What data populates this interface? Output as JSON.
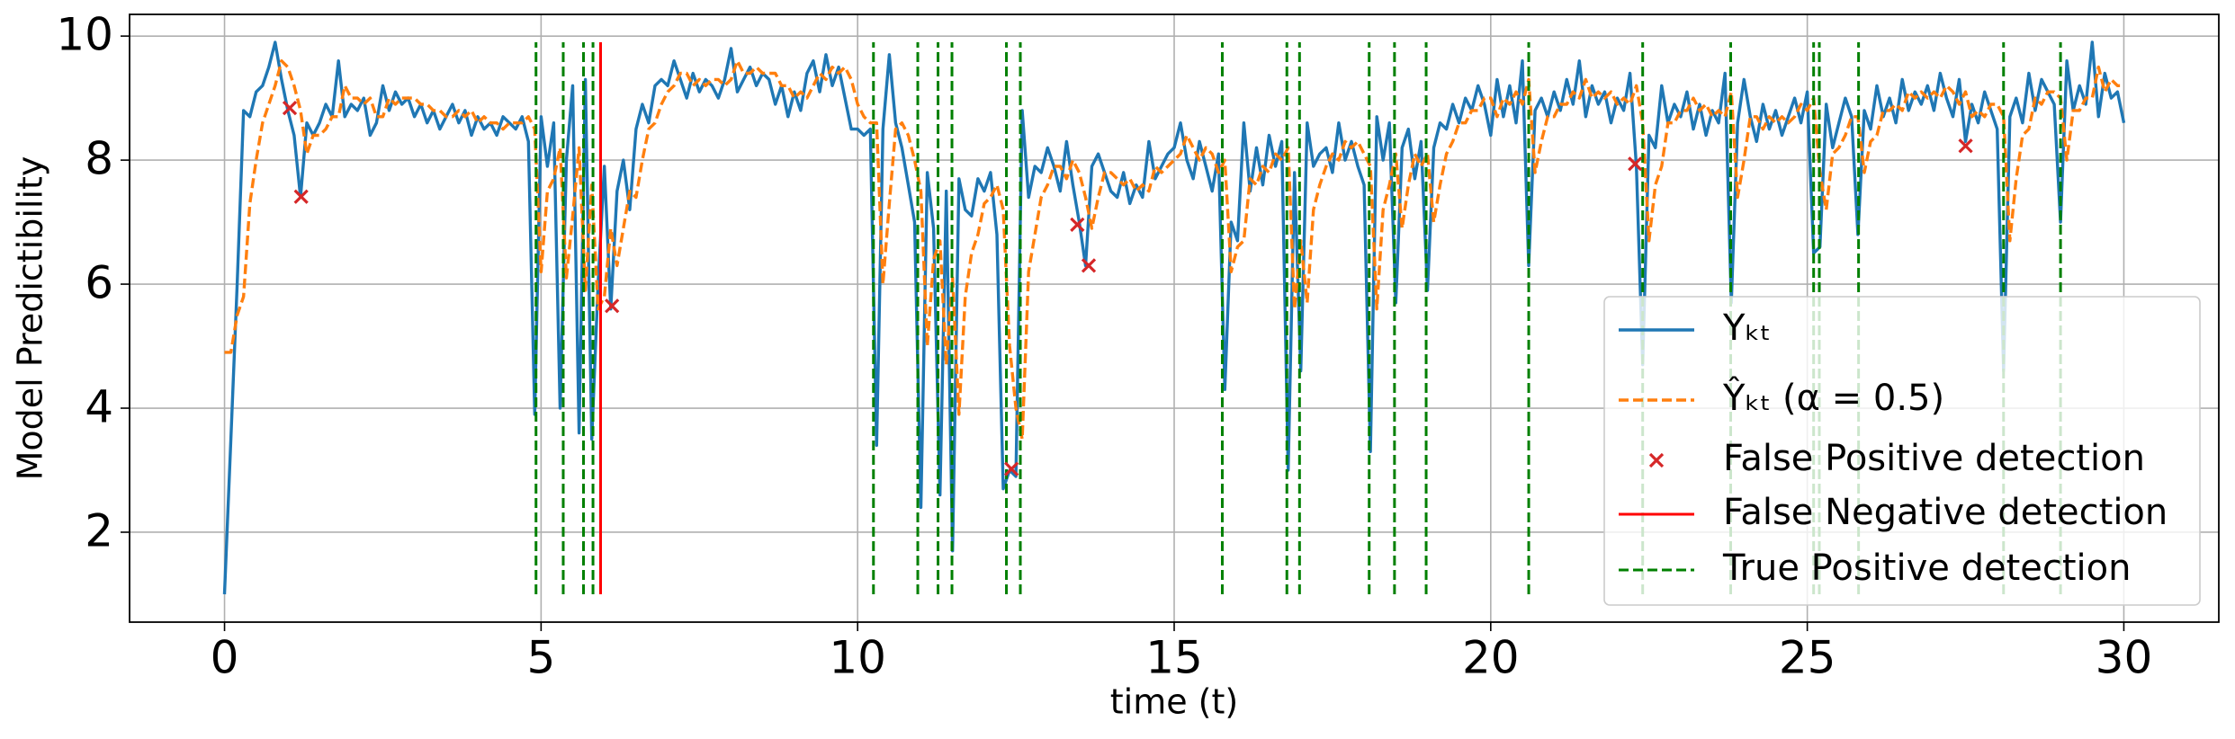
{
  "chart_data": {
    "type": "line",
    "xlabel": "time (t)",
    "ylabel": "Model Predictibility",
    "xlim": [
      -1.5,
      31.5
    ],
    "ylim": [
      0.55,
      10.35
    ],
    "xticks": [
      0,
      5,
      10,
      15,
      20,
      25,
      30
    ],
    "yticks": [
      2,
      4,
      6,
      8,
      10
    ],
    "grid": true,
    "legend": "lower right",
    "x": [
      0,
      0.1,
      0.2,
      0.3,
      0.4,
      0.5,
      0.6,
      0.7,
      0.8,
      0.9,
      1,
      1.1,
      1.2,
      1.3,
      1.4,
      1.5,
      1.6,
      1.7,
      1.8,
      1.9,
      2,
      2.1,
      2.2,
      2.3,
      2.4,
      2.5,
      2.6,
      2.7,
      2.8,
      2.9,
      3,
      3.1,
      3.2,
      3.3,
      3.4,
      3.5,
      3.6,
      3.7,
      3.8,
      3.9,
      4,
      4.1,
      4.2,
      4.3,
      4.4,
      4.5,
      4.6,
      4.7,
      4.8,
      4.9,
      5,
      5.1,
      5.2,
      5.3,
      5.4,
      5.5,
      5.6,
      5.7,
      5.8,
      5.9,
      6,
      6.1,
      6.2,
      6.3,
      6.4,
      6.5,
      6.6,
      6.7,
      6.8,
      6.9,
      7,
      7.1,
      7.2,
      7.3,
      7.4,
      7.5,
      7.6,
      7.7,
      7.8,
      7.9,
      8,
      8.1,
      8.2,
      8.3,
      8.4,
      8.5,
      8.6,
      8.7,
      8.8,
      8.9,
      9,
      9.1,
      9.2,
      9.3,
      9.4,
      9.5,
      9.6,
      9.7,
      9.8,
      9.9,
      10,
      10.1,
      10.2,
      10.3,
      10.4,
      10.5,
      10.6,
      10.7,
      10.8,
      10.9,
      11,
      11.1,
      11.2,
      11.3,
      11.4,
      11.5,
      11.6,
      11.7,
      11.8,
      11.9,
      12,
      12.1,
      12.2,
      12.3,
      12.4,
      12.5,
      12.6,
      12.7,
      12.8,
      12.9,
      13,
      13.1,
      13.2,
      13.3,
      13.4,
      13.5,
      13.6,
      13.7,
      13.8,
      13.9,
      14,
      14.1,
      14.2,
      14.3,
      14.4,
      14.5,
      14.6,
      14.7,
      14.8,
      14.9,
      15,
      15.1,
      15.2,
      15.3,
      15.4,
      15.5,
      15.6,
      15.7,
      15.8,
      15.9,
      16,
      16.1,
      16.2,
      16.3,
      16.4,
      16.5,
      16.6,
      16.7,
      16.8,
      16.9,
      17,
      17.1,
      17.2,
      17.3,
      17.4,
      17.5,
      17.6,
      17.7,
      17.8,
      17.9,
      18,
      18.1,
      18.2,
      18.3,
      18.4,
      18.5,
      18.6,
      18.7,
      18.8,
      18.9,
      19,
      19.1,
      19.2,
      19.3,
      19.4,
      19.5,
      19.6,
      19.7,
      19.8,
      19.9,
      20,
      20.1,
      20.2,
      20.3,
      20.4,
      20.5,
      20.6,
      20.7,
      20.8,
      20.9,
      21,
      21.1,
      21.2,
      21.3,
      21.4,
      21.5,
      21.6,
      21.7,
      21.8,
      21.9,
      22,
      22.1,
      22.2,
      22.3,
      22.4,
      22.5,
      22.6,
      22.7,
      22.8,
      22.9,
      23,
      23.1,
      23.2,
      23.3,
      23.4,
      23.5,
      23.6,
      23.7,
      23.8,
      23.9,
      24,
      24.1,
      24.2,
      24.3,
      24.4,
      24.5,
      24.6,
      24.7,
      24.8,
      24.9,
      25,
      25.1,
      25.2,
      25.3,
      25.4,
      25.5,
      25.6,
      25.7,
      25.8,
      25.9,
      26,
      26.1,
      26.2,
      26.3,
      26.4,
      26.5,
      26.6,
      26.7,
      26.8,
      26.9,
      27,
      27.1,
      27.2,
      27.3,
      27.4,
      27.5,
      27.6,
      27.7,
      27.8,
      27.9,
      28,
      28.1,
      28.2,
      28.3,
      28.4,
      28.5,
      28.6,
      28.7,
      28.8,
      28.9,
      29,
      29.1,
      29.2,
      29.3,
      29.4,
      29.5,
      29.6,
      29.7,
      29.8,
      29.9,
      30
    ],
    "series": [
      {
        "name": "Yₖₜ",
        "color": "#1f77b4",
        "style": "solid",
        "values": [
          1.0,
          3.5,
          6.0,
          8.8,
          8.7,
          9.1,
          9.2,
          9.5,
          9.9,
          9.3,
          8.8,
          8.4,
          7.4,
          8.6,
          8.4,
          8.6,
          8.9,
          8.7,
          9.6,
          8.7,
          8.9,
          8.8,
          9.0,
          8.4,
          8.6,
          9.2,
          8.8,
          9.1,
          8.9,
          9.0,
          8.7,
          8.9,
          8.6,
          8.8,
          8.5,
          8.7,
          8.9,
          8.6,
          8.8,
          8.4,
          8.7,
          8.5,
          8.6,
          8.4,
          8.7,
          8.6,
          8.5,
          8.7,
          8.3,
          3.9,
          8.7,
          7.9,
          8.6,
          4.0,
          8.0,
          9.2,
          3.6,
          9.3,
          3.5,
          6.0,
          7.9,
          5.6,
          7.5,
          8.0,
          7.2,
          8.5,
          8.9,
          8.6,
          9.2,
          9.3,
          9.2,
          9.6,
          9.3,
          9.0,
          9.4,
          9.1,
          9.3,
          9.2,
          9.0,
          9.3,
          9.8,
          9.1,
          9.3,
          9.5,
          9.2,
          9.4,
          9.3,
          8.9,
          9.2,
          8.7,
          9.1,
          8.8,
          9.4,
          9.6,
          9.1,
          9.7,
          9.2,
          9.5,
          9.0,
          8.5,
          8.5,
          8.4,
          8.5,
          3.4,
          8.5,
          9.7,
          8.6,
          8.2,
          7.6,
          7.0,
          2.4,
          7.8,
          6.9,
          2.6,
          7.5,
          1.7,
          7.7,
          7.2,
          7.1,
          7.7,
          7.5,
          7.8,
          6.8,
          2.7,
          3.0,
          2.9,
          8.8,
          7.4,
          7.9,
          7.8,
          8.2,
          7.9,
          7.5,
          8.3,
          7.6,
          7.0,
          6.3,
          7.9,
          8.1,
          7.8,
          7.5,
          7.4,
          7.8,
          7.3,
          7.6,
          7.4,
          8.3,
          7.7,
          7.9,
          8.1,
          8.2,
          8.6,
          8.0,
          7.7,
          8.3,
          7.9,
          7.5,
          8.1,
          4.3,
          7.0,
          6.7,
          8.6,
          7.5,
          8.2,
          7.6,
          8.4,
          7.9,
          8.3,
          3.0,
          7.8,
          4.6,
          8.6,
          7.9,
          8.1,
          8.2,
          7.8,
          8.6,
          8.0,
          8.3,
          7.9,
          7.6,
          3.3,
          8.7,
          8.0,
          8.6,
          5.7,
          8.2,
          8.5,
          7.7,
          8.3,
          5.9,
          8.2,
          8.6,
          8.5,
          8.9,
          8.6,
          9.0,
          8.8,
          9.2,
          8.9,
          8.4,
          9.3,
          8.7,
          9.2,
          8.6,
          9.6,
          6.3,
          8.8,
          9.0,
          8.7,
          9.1,
          8.8,
          9.3,
          8.9,
          9.6,
          8.7,
          9.2,
          8.9,
          9.1,
          8.6,
          9.0,
          8.8,
          9.4,
          7.9,
          4.7,
          8.4,
          8.2,
          9.2,
          8.6,
          8.9,
          8.7,
          9.1,
          8.5,
          8.9,
          8.4,
          8.8,
          8.6,
          9.4,
          5.7,
          8.6,
          9.3,
          8.7,
          8.3,
          8.9,
          8.5,
          8.8,
          8.4,
          8.7,
          9.0,
          8.6,
          9.1,
          6.5,
          6.6,
          8.9,
          8.2,
          8.6,
          9.0,
          8.7,
          6.8,
          8.8,
          8.5,
          9.2,
          8.7,
          9.0,
          8.6,
          9.3,
          8.8,
          9.1,
          8.9,
          9.2,
          8.8,
          9.4,
          9.0,
          8.7,
          9.3,
          8.3,
          8.9,
          8.6,
          9.1,
          8.8,
          8.5,
          4.6,
          8.7,
          9.0,
          8.6,
          9.4,
          8.8,
          9.3,
          9.1,
          8.9,
          7.0,
          9.6,
          8.8,
          9.2,
          8.9,
          9.9,
          8.7,
          9.4,
          9.0,
          9.1,
          8.6
        ]
      },
      {
        "name": "Ŷₖₜ (α = 0.5)",
        "color": "#ff7f0e",
        "style": "dashed",
        "values": [
          4.9,
          4.9,
          5.5,
          5.8,
          7.3,
          8.0,
          8.6,
          8.9,
          9.2,
          9.6,
          9.5,
          9.2,
          8.8,
          8.1,
          8.4,
          8.4,
          8.5,
          8.7,
          8.7,
          9.2,
          9.0,
          9.0,
          8.9,
          9.0,
          8.7,
          8.7,
          9.0,
          8.9,
          9.0,
          9.0,
          9.0,
          8.9,
          8.9,
          8.8,
          8.8,
          8.7,
          8.7,
          8.8,
          8.7,
          8.8,
          8.6,
          8.7,
          8.6,
          8.6,
          8.5,
          8.6,
          8.6,
          8.6,
          8.7,
          8.5,
          6.2,
          7.5,
          7.7,
          8.2,
          6.1,
          7.1,
          8.2,
          5.9,
          7.6,
          5.6,
          5.8,
          6.9,
          6.3,
          6.9,
          7.5,
          7.4,
          8.0,
          8.5,
          8.6,
          8.9,
          9.1,
          9.2,
          9.4,
          9.4,
          9.2,
          9.3,
          9.2,
          9.3,
          9.3,
          9.2,
          9.3,
          9.6,
          9.4,
          9.4,
          9.5,
          9.4,
          9.4,
          9.4,
          9.2,
          9.2,
          9.0,
          9.1,
          9.0,
          9.2,
          9.4,
          9.3,
          9.5,
          9.4,
          9.5,
          9.3,
          8.9,
          8.7,
          8.6,
          8.6,
          6.0,
          7.3,
          8.5,
          8.6,
          8.4,
          8.0,
          7.5,
          5.0,
          6.4,
          6.7,
          4.7,
          6.1,
          3.9,
          5.8,
          6.5,
          6.8,
          7.3,
          7.4,
          7.6,
          7.2,
          5.0,
          4.0,
          3.5,
          6.2,
          6.8,
          7.4,
          7.6,
          7.9,
          7.9,
          7.7,
          8.0,
          7.8,
          7.4,
          6.9,
          7.4,
          7.8,
          7.8,
          7.7,
          7.6,
          7.7,
          7.5,
          7.6,
          7.5,
          7.9,
          7.8,
          7.9,
          8.0,
          8.1,
          8.4,
          8.2,
          8.0,
          8.2,
          8.1,
          7.8,
          8.0,
          6.2,
          6.6,
          6.7,
          7.7,
          7.6,
          7.9,
          7.8,
          8.1,
          8.0,
          8.2,
          5.6,
          6.7,
          5.7,
          7.2,
          7.6,
          7.9,
          8.1,
          8.0,
          8.3,
          8.2,
          8.3,
          8.1,
          7.9,
          5.6,
          7.2,
          7.6,
          8.1,
          6.9,
          7.6,
          8.1,
          7.9,
          8.1,
          7.0,
          7.6,
          8.1,
          8.3,
          8.6,
          8.6,
          8.8,
          8.8,
          9.0,
          9.0,
          8.7,
          9.0,
          8.9,
          9.1,
          8.9,
          9.3,
          7.8,
          8.3,
          8.7,
          8.7,
          8.9,
          8.9,
          9.1,
          9.0,
          9.3,
          9.0,
          9.1,
          9.0,
          9.1,
          8.9,
          9.0,
          8.9,
          9.2,
          8.6,
          6.7,
          7.6,
          7.9,
          8.6,
          8.6,
          8.8,
          8.8,
          9.0,
          8.8,
          8.9,
          8.7,
          8.8,
          8.7,
          9.1,
          7.4,
          8.0,
          8.7,
          8.7,
          8.5,
          8.7,
          8.6,
          8.7,
          8.6,
          8.7,
          8.9,
          8.8,
          9.0,
          7.8,
          7.2,
          8.1,
          8.2,
          8.4,
          8.7,
          8.7,
          7.8,
          8.3,
          8.4,
          8.8,
          8.8,
          8.9,
          8.8,
          9.1,
          9.0,
          9.1,
          9.0,
          9.1,
          9.0,
          9.2,
          9.1,
          8.9,
          9.1,
          8.7,
          8.8,
          8.7,
          8.9,
          8.9,
          8.7,
          6.7,
          7.7,
          8.4,
          8.5,
          9.0,
          8.9,
          9.1,
          9.1,
          9.0,
          8.0,
          8.8,
          8.8,
          9.0,
          9.0,
          9.5,
          9.1,
          9.3,
          9.2,
          9.2
        ]
      }
    ],
    "false_positives": {
      "name": "False Positive detection",
      "color": "#d62728",
      "x": [
        1.03,
        1.21,
        6.12,
        12.43,
        13.47,
        13.65,
        22.28,
        27.5
      ],
      "values": [
        8.84,
        7.41,
        5.65,
        3.02,
        6.96,
        6.3,
        7.94,
        8.23
      ]
    },
    "false_negatives": {
      "name": "False Negative detection",
      "color": "#ff0000",
      "x": [
        5.94
      ]
    },
    "true_positives": {
      "name": "True Positive detection",
      "color": "#008000",
      "x": [
        4.92,
        5.35,
        5.67,
        5.82,
        10.25,
        10.95,
        11.27,
        11.49,
        12.35,
        12.57,
        15.76,
        16.78,
        16.98,
        18.08,
        18.48,
        18.98,
        20.6,
        22.4,
        23.79,
        25.1,
        25.19,
        25.81,
        28.1,
        29.0
      ]
    },
    "vline_range": [
      1,
      9.9
    ]
  }
}
